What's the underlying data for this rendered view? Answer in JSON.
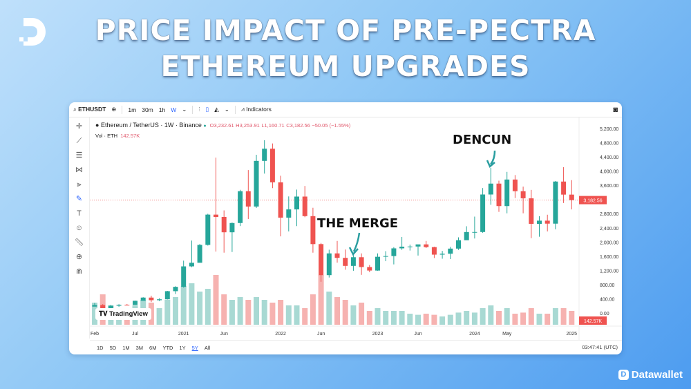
{
  "title_lines": [
    "PRICE IMPACT OF PRE-PECTRA",
    "ETHEREUM UPGRADES"
  ],
  "brand": "Datawallet",
  "toolbar": {
    "symbol": "ETHUSDT",
    "intervals": [
      "1m",
      "30m",
      "1h",
      "W"
    ],
    "indicators": "Indicators"
  },
  "legend": {
    "name": "Ethereum / TetherUS · 1W · Binance",
    "o": "O3,232.61",
    "h": "H3,253.91",
    "l": "L1,160.71",
    "c": "C3,182.56",
    "chg": "−50.05 (−1.55%)",
    "vol_label": "Vol · ETH",
    "vol_value": "142.57K"
  },
  "watermark": "TradingView",
  "ranges": [
    "1D",
    "5D",
    "1M",
    "3M",
    "6M",
    "YTD",
    "1Y",
    "5Y",
    "All"
  ],
  "active_range": "5Y",
  "clock": "03:47:41 (UTC)",
  "annotations": {
    "merge": "THE MERGE",
    "dencun": "DENCUN"
  },
  "colors": {
    "up": "#26a69a",
    "down": "#ef5350",
    "vol_up": "#a8d9d3",
    "vol_down": "#f6b2b0"
  },
  "chart_data": {
    "type": "candlestick",
    "ylim": [
      0,
      5200
    ],
    "yticks": [
      "5,200.00",
      "4,800.00",
      "4,400.00",
      "4,000.00",
      "3,600.00",
      "2,800.00",
      "2,400.00",
      "2,000.00",
      "1,600.00",
      "1,200.00",
      "800.00",
      "400.00",
      "0.00"
    ],
    "ytick_values": [
      5200,
      4800,
      4400,
      4000,
      3600,
      2800,
      2400,
      2000,
      1600,
      1200,
      800,
      400,
      0
    ],
    "last_price_label": "3,182.56",
    "last_price": 3182.56,
    "last_volume_label": "142.57K",
    "xticks": [
      "Feb",
      "Jul",
      "2021",
      "Jun",
      "2022",
      "Jun",
      "2023",
      "Jun",
      "2024",
      "May",
      "2025"
    ],
    "xtick_months": [
      0,
      5,
      11,
      16,
      23,
      28,
      35,
      40,
      47,
      51,
      59
    ],
    "periods": "monthly Feb 2020 – Jan 2025 (approx.)",
    "open_first": 180,
    "close": [
      225,
      133,
      206,
      231,
      226,
      345,
      434,
      360,
      386,
      615,
      737,
      1314,
      1416,
      1919,
      2773,
      2707,
      2275,
      2536,
      3433,
      3001,
      4288,
      4631,
      3683,
      2688,
      2920,
      3282,
      2730,
      1942,
      1067,
      1680,
      1554,
      1328,
      1572,
      1295,
      1196,
      1585,
      1605,
      1822,
      1870,
      1874,
      1934,
      1857,
      1645,
      1671,
      1815,
      2052,
      2282,
      2283,
      3340,
      3647,
      3014,
      3762,
      3433,
      3232,
      2513,
      2603,
      2518,
      3705,
      3337,
      3183
    ],
    "high": [
      288,
      250,
      228,
      248,
      253,
      350,
      445,
      488,
      417,
      622,
      755,
      1476,
      2042,
      1945,
      2797,
      4380,
      2892,
      2551,
      3472,
      4028,
      4460,
      4868,
      4779,
      3868,
      3286,
      3480,
      3580,
      2966,
      1974,
      1784,
      2030,
      1790,
      1663,
      1680,
      1352,
      1680,
      1743,
      1857,
      2142,
      1928,
      1930,
      2030,
      1870,
      1750,
      1865,
      2133,
      2445,
      2717,
      3522,
      4093,
      3730,
      3977,
      3887,
      3563,
      3470,
      2729,
      2770,
      3721,
      4109,
      3745
    ],
    "low": [
      212,
      90,
      129,
      176,
      215,
      223,
      368,
      308,
      335,
      380,
      535,
      715,
      1290,
      1434,
      1900,
      1730,
      1700,
      1720,
      2450,
      2650,
      2960,
      3930,
      3520,
      2160,
      2300,
      2450,
      2700,
      1700,
      880,
      1000,
      1420,
      1220,
      1190,
      1075,
      1150,
      1190,
      1460,
      1370,
      1780,
      1760,
      1620,
      1830,
      1550,
      1530,
      1520,
      1780,
      2140,
      2100,
      2260,
      3050,
      2850,
      2810,
      3240,
      2810,
      2110,
      2150,
      2300,
      2360,
      3100,
      2920
    ],
    "volume_relative": [
      40,
      55,
      35,
      30,
      25,
      35,
      45,
      40,
      30,
      45,
      50,
      70,
      75,
      60,
      65,
      90,
      55,
      45,
      50,
      45,
      50,
      45,
      40,
      45,
      35,
      35,
      30,
      55,
      90,
      60,
      50,
      45,
      35,
      40,
      25,
      30,
      25,
      25,
      25,
      20,
      18,
      20,
      18,
      15,
      18,
      22,
      25,
      22,
      30,
      35,
      25,
      30,
      20,
      22,
      30,
      20,
      20,
      30,
      30,
      25
    ]
  }
}
